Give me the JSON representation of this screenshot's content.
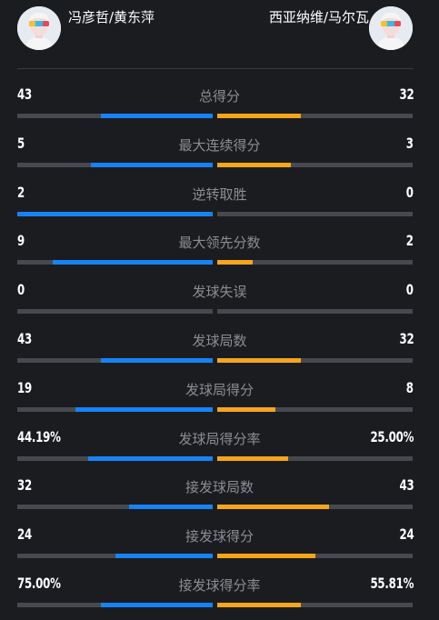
{
  "header": {
    "left_team": "冯彦哲/黄东萍",
    "right_team": "西亚纳维/马尔瓦",
    "left_avatar_icon": "player-avatar-icon",
    "right_avatar_icon": "player-avatar-icon"
  },
  "colors": {
    "left_accent": "#1783f6",
    "right_accent": "#f7a51c",
    "track": "#48494e",
    "label": "#8c8d92"
  },
  "stats": [
    {
      "label": "总得分",
      "left": "43",
      "right": "32",
      "left_ratio": 0.573,
      "right_ratio": 0.427
    },
    {
      "label": "最大连续得分",
      "left": "5",
      "right": "3",
      "left_ratio": 0.625,
      "right_ratio": 0.375
    },
    {
      "label": "逆转取胜",
      "left": "2",
      "right": "0",
      "left_ratio": 1.0,
      "right_ratio": 0.0
    },
    {
      "label": "最大领先分数",
      "left": "9",
      "right": "2",
      "left_ratio": 0.818,
      "right_ratio": 0.182
    },
    {
      "label": "发球失误",
      "left": "0",
      "right": "0",
      "left_ratio": 0.0,
      "right_ratio": 0.0
    },
    {
      "label": "发球局数",
      "left": "43",
      "right": "32",
      "left_ratio": 0.573,
      "right_ratio": 0.427
    },
    {
      "label": "发球局得分",
      "left": "19",
      "right": "8",
      "left_ratio": 0.704,
      "right_ratio": 0.296
    },
    {
      "label": "发球局得分率",
      "left": "44.19%",
      "right": "25.00%",
      "left_ratio": 0.639,
      "right_ratio": 0.361
    },
    {
      "label": "接发球局数",
      "left": "32",
      "right": "43",
      "left_ratio": 0.427,
      "right_ratio": 0.573
    },
    {
      "label": "接发球得分",
      "left": "24",
      "right": "24",
      "left_ratio": 0.5,
      "right_ratio": 0.5
    },
    {
      "label": "接发球得分率",
      "left": "75.00%",
      "right": "55.81%",
      "left_ratio": 0.573,
      "right_ratio": 0.427
    }
  ]
}
